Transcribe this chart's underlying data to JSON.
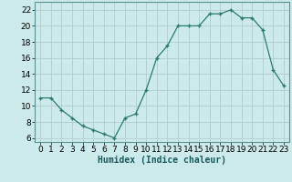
{
  "x": [
    0,
    1,
    2,
    3,
    4,
    5,
    6,
    7,
    8,
    9,
    10,
    11,
    12,
    13,
    14,
    15,
    16,
    17,
    18,
    19,
    20,
    21,
    22,
    23
  ],
  "y": [
    11,
    11,
    9.5,
    8.5,
    7.5,
    7,
    6.5,
    6,
    8.5,
    9,
    12,
    16,
    17.5,
    20,
    20,
    20,
    21.5,
    21.5,
    22,
    21,
    21,
    19.5,
    14.5,
    12.5
  ],
  "line_color": "#2d7a6e",
  "marker": "+",
  "marker_size": 3.5,
  "bg_color": "#cceaea",
  "grid_color": "#b0cccc",
  "xlabel": "Humidex (Indice chaleur)",
  "ylabel": "",
  "xlim": [
    -0.5,
    23.5
  ],
  "ylim": [
    5.5,
    23
  ],
  "yticks": [
    6,
    8,
    10,
    12,
    14,
    16,
    18,
    20,
    22
  ],
  "xtick_labels": [
    "0",
    "1",
    "2",
    "3",
    "4",
    "5",
    "6",
    "7",
    "8",
    "9",
    "10",
    "11",
    "12",
    "13",
    "14",
    "15",
    "16",
    "17",
    "18",
    "19",
    "20",
    "21",
    "22",
    "23"
  ],
  "xlabel_fontsize": 7,
  "tick_fontsize": 6.5
}
